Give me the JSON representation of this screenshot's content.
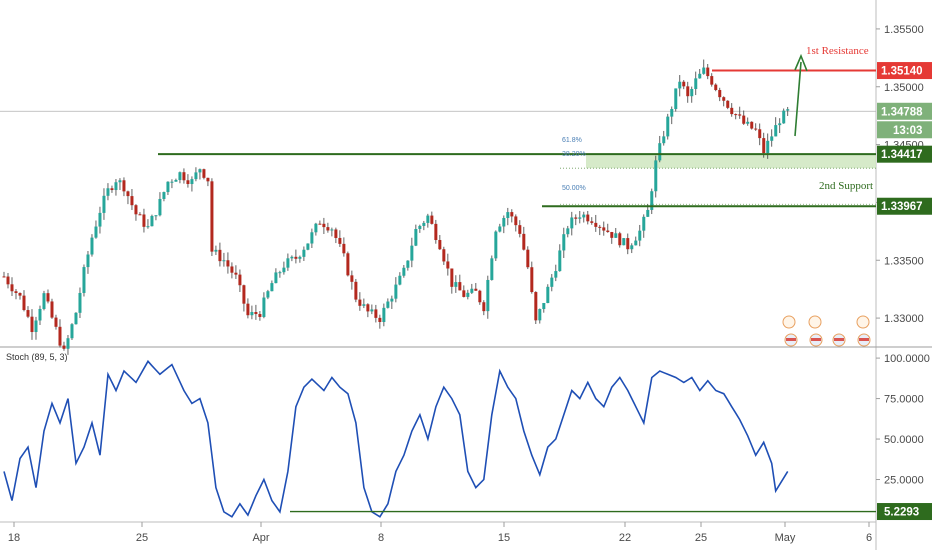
{
  "colors": {
    "up": "#26a69a",
    "down": "#b3281e",
    "wick": "#3b3b3b",
    "resistance": "#e53935",
    "support": "#2e6b1e",
    "fib_zone": "#cfe6c0",
    "stoch_line": "#1f4fb5",
    "price_tag": "#7fb17a",
    "grid_border": "#c9c9c9"
  },
  "chart_data": [
    {
      "type": "candlestick",
      "symbol_pair_note": "",
      "y_axis": {
        "ticks": [
          "1.35500",
          "1.35000",
          "1.34500",
          "1.34000",
          "1.33500",
          "1.33000"
        ],
        "ylim": [
          1.3275,
          1.3575
        ]
      },
      "x_axis": {
        "ticks": [
          "18",
          "25",
          "Apr",
          "8",
          "15",
          "22",
          "25",
          "May",
          "6"
        ]
      },
      "price_path": [
        [
          0,
          1.3336
        ],
        [
          4,
          1.3318
        ],
        [
          7,
          1.3292
        ],
        [
          10,
          1.332
        ],
        [
          13,
          1.329
        ],
        [
          15,
          1.327
        ],
        [
          18,
          1.3305
        ],
        [
          20,
          1.334
        ],
        [
          22,
          1.337
        ],
        [
          24,
          1.3393
        ],
        [
          26,
          1.341
        ],
        [
          28,
          1.342
        ],
        [
          30,
          1.3414
        ],
        [
          33,
          1.339
        ],
        [
          36,
          1.3378
        ],
        [
          39,
          1.34
        ],
        [
          41,
          1.3418
        ],
        [
          44,
          1.3425
        ],
        [
          47,
          1.3418
        ],
        [
          49,
          1.343
        ],
        [
          51,
          1.342
        ],
        [
          52,
          1.3358
        ],
        [
          55,
          1.335
        ],
        [
          58,
          1.3335
        ],
        [
          61,
          1.3302
        ],
        [
          64,
          1.3305
        ],
        [
          67,
          1.333
        ],
        [
          70,
          1.3346
        ],
        [
          73,
          1.3352
        ],
        [
          76,
          1.3366
        ],
        [
          79,
          1.3384
        ],
        [
          82,
          1.3378
        ],
        [
          85,
          1.3352
        ],
        [
          88,
          1.3318
        ],
        [
          91,
          1.3305
        ],
        [
          94,
          1.33
        ],
        [
          97,
          1.332
        ],
        [
          100,
          1.334
        ],
        [
          103,
          1.3376
        ],
        [
          106,
          1.3388
        ],
        [
          109,
          1.3364
        ],
        [
          112,
          1.333
        ],
        [
          115,
          1.332
        ],
        [
          118,
          1.3322
        ],
        [
          120,
          1.331
        ],
        [
          123,
          1.3378
        ],
        [
          126,
          1.3392
        ],
        [
          129,
          1.3375
        ],
        [
          131,
          1.3344
        ],
        [
          133,
          1.3296
        ],
        [
          135,
          1.3315
        ],
        [
          138,
          1.3345
        ],
        [
          141,
          1.338
        ],
        [
          144,
          1.339
        ],
        [
          147,
          1.3386
        ],
        [
          150,
          1.3378
        ],
        [
          153,
          1.337
        ],
        [
          156,
          1.3362
        ],
        [
          159,
          1.3375
        ],
        [
          161,
          1.3392
        ],
        [
          163,
          1.3434
        ],
        [
          165,
          1.346
        ],
        [
          167,
          1.3483
        ],
        [
          169,
          1.3506
        ],
        [
          171,
          1.349
        ],
        [
          173,
          1.3505
        ],
        [
          175,
          1.3514
        ],
        [
          177,
          1.3505
        ],
        [
          179,
          1.3494
        ],
        [
          182,
          1.348
        ],
        [
          185,
          1.3468
        ],
        [
          188,
          1.3462
        ],
        [
          190,
          1.3444
        ],
        [
          192,
          1.3458
        ],
        [
          194,
          1.3472
        ],
        [
          196,
          1.3478
        ]
      ],
      "stochastic": {
        "title": "Stoch (89, 5, 3)",
        "ticks": [
          "100.0000",
          "75.0000",
          "50.0000",
          "25.0000"
        ],
        "ylim": [
          0,
          105
        ],
        "path": [
          [
            0,
            30
          ],
          [
            2,
            12
          ],
          [
            4,
            38
          ],
          [
            6,
            45
          ],
          [
            8,
            20
          ],
          [
            10,
            55
          ],
          [
            12,
            72
          ],
          [
            14,
            60
          ],
          [
            16,
            75
          ],
          [
            17,
            55
          ],
          [
            18,
            35
          ],
          [
            20,
            45
          ],
          [
            22,
            60
          ],
          [
            24,
            40
          ],
          [
            26,
            90
          ],
          [
            28,
            80
          ],
          [
            30,
            92
          ],
          [
            33,
            85
          ],
          [
            36,
            98
          ],
          [
            39,
            90
          ],
          [
            42,
            96
          ],
          [
            45,
            80
          ],
          [
            47,
            72
          ],
          [
            49,
            75
          ],
          [
            51,
            60
          ],
          [
            53,
            20
          ],
          [
            55,
            5
          ],
          [
            57,
            2
          ],
          [
            59,
            10
          ],
          [
            61,
            3
          ],
          [
            63,
            15
          ],
          [
            65,
            25
          ],
          [
            67,
            12
          ],
          [
            69,
            5
          ],
          [
            71,
            30
          ],
          [
            73,
            70
          ],
          [
            75,
            82
          ],
          [
            77,
            87
          ],
          [
            80,
            80
          ],
          [
            82,
            88
          ],
          [
            84,
            82
          ],
          [
            86,
            78
          ],
          [
            88,
            60
          ],
          [
            90,
            20
          ],
          [
            92,
            5
          ],
          [
            94,
            2
          ],
          [
            96,
            10
          ],
          [
            98,
            30
          ],
          [
            100,
            40
          ],
          [
            102,
            55
          ],
          [
            104,
            65
          ],
          [
            106,
            50
          ],
          [
            108,
            70
          ],
          [
            110,
            82
          ],
          [
            112,
            75
          ],
          [
            114,
            65
          ],
          [
            116,
            30
          ],
          [
            118,
            20
          ],
          [
            120,
            25
          ],
          [
            122,
            65
          ],
          [
            124,
            92
          ],
          [
            126,
            82
          ],
          [
            128,
            75
          ],
          [
            130,
            55
          ],
          [
            132,
            40
          ],
          [
            134,
            28
          ],
          [
            136,
            45
          ],
          [
            138,
            50
          ],
          [
            140,
            65
          ],
          [
            142,
            80
          ],
          [
            144,
            75
          ],
          [
            146,
            85
          ],
          [
            148,
            75
          ],
          [
            150,
            70
          ],
          [
            152,
            82
          ],
          [
            154,
            88
          ],
          [
            156,
            80
          ],
          [
            158,
            70
          ],
          [
            160,
            60
          ],
          [
            162,
            88
          ],
          [
            164,
            92
          ],
          [
            166,
            90
          ],
          [
            168,
            88
          ],
          [
            170,
            85
          ],
          [
            172,
            88
          ],
          [
            174,
            80
          ],
          [
            176,
            86
          ],
          [
            178,
            80
          ],
          [
            180,
            78
          ],
          [
            182,
            70
          ],
          [
            184,
            62
          ],
          [
            186,
            52
          ],
          [
            188,
            40
          ],
          [
            190,
            48
          ],
          [
            192,
            35
          ],
          [
            193,
            18
          ],
          [
            196,
            30
          ]
        ]
      },
      "stoch_level": {
        "label": "5.2293",
        "value": 5.2293
      },
      "annotations": {
        "resistance": {
          "label": "1st Resistance",
          "price": 1.3514,
          "tag": "1.35140"
        },
        "current_price_tag": "1.34788",
        "current_price": 1.34788,
        "countdown_tag": "13:03",
        "support_line": {
          "price": 1.34417,
          "tag": "1.34417"
        },
        "support2": {
          "label": "2nd Support",
          "price": 1.33967,
          "tag": "1.33967"
        },
        "fib_labels": [
          "61.8%",
          "38.20%",
          "50.00%"
        ]
      }
    }
  ]
}
